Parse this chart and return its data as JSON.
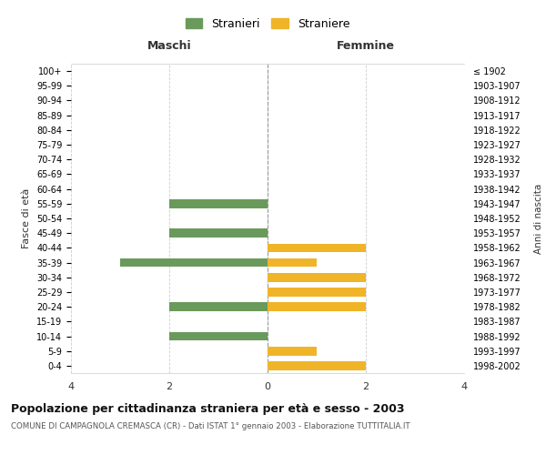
{
  "age_groups": [
    "100+",
    "95-99",
    "90-94",
    "85-89",
    "80-84",
    "75-79",
    "70-74",
    "65-69",
    "60-64",
    "55-59",
    "50-54",
    "45-49",
    "40-44",
    "35-39",
    "30-34",
    "25-29",
    "20-24",
    "15-19",
    "10-14",
    "5-9",
    "0-4"
  ],
  "birth_years": [
    "≤ 1902",
    "1903-1907",
    "1908-1912",
    "1913-1917",
    "1918-1922",
    "1923-1927",
    "1928-1932",
    "1933-1937",
    "1938-1942",
    "1943-1947",
    "1948-1952",
    "1953-1957",
    "1958-1962",
    "1963-1967",
    "1968-1972",
    "1973-1977",
    "1978-1982",
    "1983-1987",
    "1988-1992",
    "1993-1997",
    "1998-2002"
  ],
  "maschi": [
    0,
    0,
    0,
    0,
    0,
    0,
    0,
    0,
    0,
    2,
    0,
    2,
    0,
    3,
    0,
    0,
    2,
    0,
    2,
    0,
    0
  ],
  "femmine": [
    0,
    0,
    0,
    0,
    0,
    0,
    0,
    0,
    0,
    0,
    0,
    0,
    2,
    1,
    2,
    2,
    2,
    0,
    0,
    1,
    2
  ],
  "color_maschi": "#6a9a5b",
  "color_femmine": "#f0b429",
  "title": "Popolazione per cittadinanza straniera per età e sesso - 2003",
  "subtitle": "COMUNE DI CAMPAGNOLA CREMASCA (CR) - Dati ISTAT 1° gennaio 2003 - Elaborazione TUTTITALIA.IT",
  "xlabel_left": "Maschi",
  "xlabel_right": "Femmine",
  "ylabel_left": "Fasce di età",
  "ylabel_right": "Anni di nascita",
  "legend_maschi": "Stranieri",
  "legend_femmine": "Straniere",
  "xlim": 4,
  "background_color": "#ffffff",
  "grid_color": "#cccccc"
}
